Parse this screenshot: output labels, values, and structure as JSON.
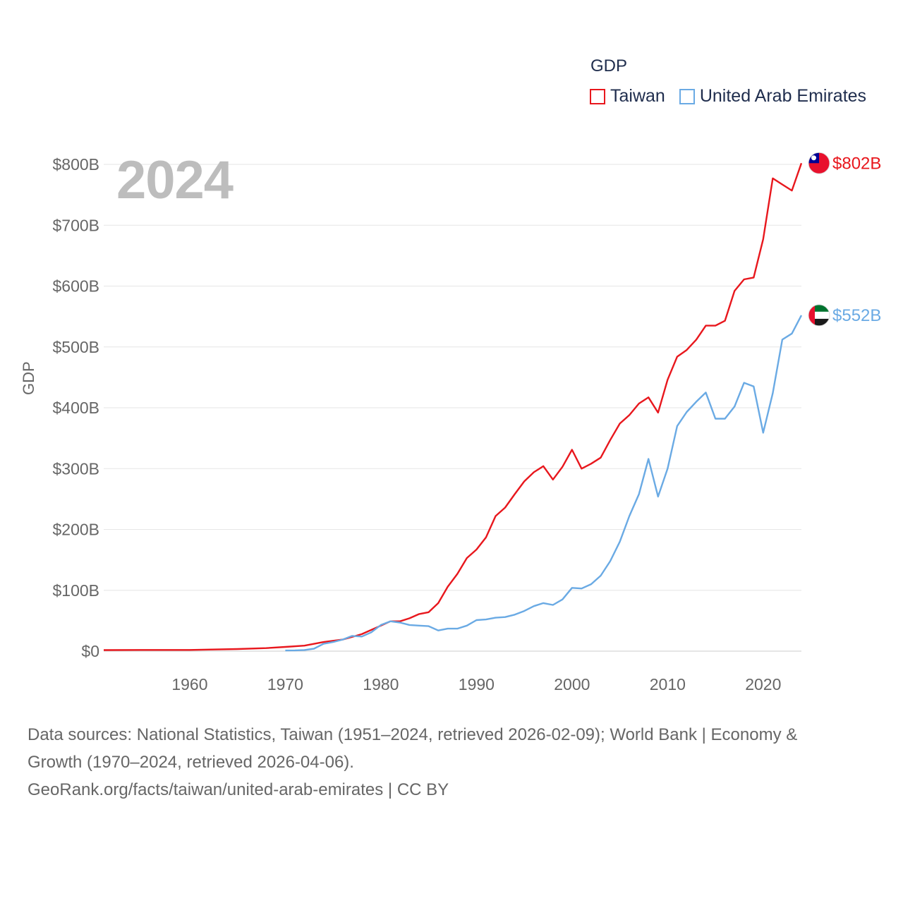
{
  "chart_data": {
    "type": "line",
    "year_label": "2024",
    "legend_title": "GDP",
    "ylabel": "GDP",
    "xlabel": "",
    "ylim": [
      0,
      800
    ],
    "xlim": [
      1951,
      2024
    ],
    "y_ticks": [
      {
        "value": 0,
        "label": "$0"
      },
      {
        "value": 100,
        "label": "$100B"
      },
      {
        "value": 200,
        "label": "$200B"
      },
      {
        "value": 300,
        "label": "$300B"
      },
      {
        "value": 400,
        "label": "$400B"
      },
      {
        "value": 500,
        "label": "$500B"
      },
      {
        "value": 600,
        "label": "$600B"
      },
      {
        "value": 700,
        "label": "$700B"
      },
      {
        "value": 800,
        "label": "$800B"
      }
    ],
    "x_ticks": [
      {
        "value": 1960,
        "label": "1960"
      },
      {
        "value": 1970,
        "label": "1970"
      },
      {
        "value": 1980,
        "label": "1980"
      },
      {
        "value": 1990,
        "label": "1990"
      },
      {
        "value": 2000,
        "label": "2000"
      },
      {
        "value": 2010,
        "label": "2010"
      },
      {
        "value": 2020,
        "label": "2020"
      }
    ],
    "series": [
      {
        "name": "Taiwan",
        "color": "#e8171d",
        "end_label": "$802B",
        "flag": "taiwan-flag-icon",
        "x": [
          1951,
          1955,
          1960,
          1965,
          1968,
          1970,
          1972,
          1974,
          1976,
          1978,
          1980,
          1981,
          1982,
          1983,
          1984,
          1985,
          1986,
          1987,
          1988,
          1989,
          1990,
          1991,
          1992,
          1993,
          1994,
          1995,
          1996,
          1997,
          1998,
          1999,
          2000,
          2001,
          2002,
          2003,
          2004,
          2005,
          2006,
          2007,
          2008,
          2009,
          2010,
          2011,
          2012,
          2013,
          2014,
          2015,
          2016,
          2017,
          2018,
          2019,
          2020,
          2021,
          2022,
          2023,
          2024
        ],
        "values": [
          1.7,
          2,
          2,
          3.5,
          5,
          7,
          9,
          15,
          19,
          28,
          42,
          49,
          49,
          54,
          61,
          64,
          79,
          106,
          127,
          153,
          167,
          187,
          222,
          236,
          258,
          279,
          294,
          304,
          282,
          303,
          331,
          300,
          308,
          318,
          347,
          374,
          388,
          407,
          417,
          392,
          446,
          484,
          495,
          512,
          535,
          535,
          543,
          592,
          611,
          614,
          677,
          777,
          767,
          757,
          802
        ]
      },
      {
        "name": "United Arab Emirates",
        "color": "#6aaae4",
        "end_label": "$552B",
        "flag": "uae-flag-icon",
        "x": [
          1970,
          1971,
          1972,
          1973,
          1974,
          1975,
          1976,
          1977,
          1978,
          1979,
          1980,
          1981,
          1982,
          1983,
          1984,
          1985,
          1986,
          1987,
          1988,
          1989,
          1990,
          1991,
          1992,
          1993,
          1994,
          1995,
          1996,
          1997,
          1998,
          1999,
          2000,
          2001,
          2002,
          2003,
          2004,
          2005,
          2006,
          2007,
          2008,
          2009,
          2010,
          2011,
          2012,
          2013,
          2014,
          2015,
          2016,
          2017,
          2018,
          2019,
          2020,
          2021,
          2022,
          2023,
          2024
        ],
        "values": [
          1,
          1.3,
          1.8,
          4,
          12,
          15,
          19,
          25,
          24,
          31,
          43,
          49,
          47,
          43,
          42,
          41,
          34,
          37,
          37,
          42,
          51,
          52,
          55,
          56,
          60,
          66,
          74,
          79,
          76,
          85,
          104,
          103,
          110,
          124,
          148,
          180,
          222,
          258,
          316,
          254,
          300,
          370,
          393,
          410,
          425,
          382,
          382,
          402,
          441,
          435,
          359,
          424,
          512,
          522,
          552
        ]
      }
    ]
  },
  "sources": {
    "line1": "Data sources: National Statistics, Taiwan (1951–2024, retrieved 2026-02-09); World Bank | Economy &",
    "line2": "Growth (1970–2024, retrieved 2026-04-06).",
    "line3": "GeoRank.org/facts/taiwan/united-arab-emirates | CC BY"
  }
}
